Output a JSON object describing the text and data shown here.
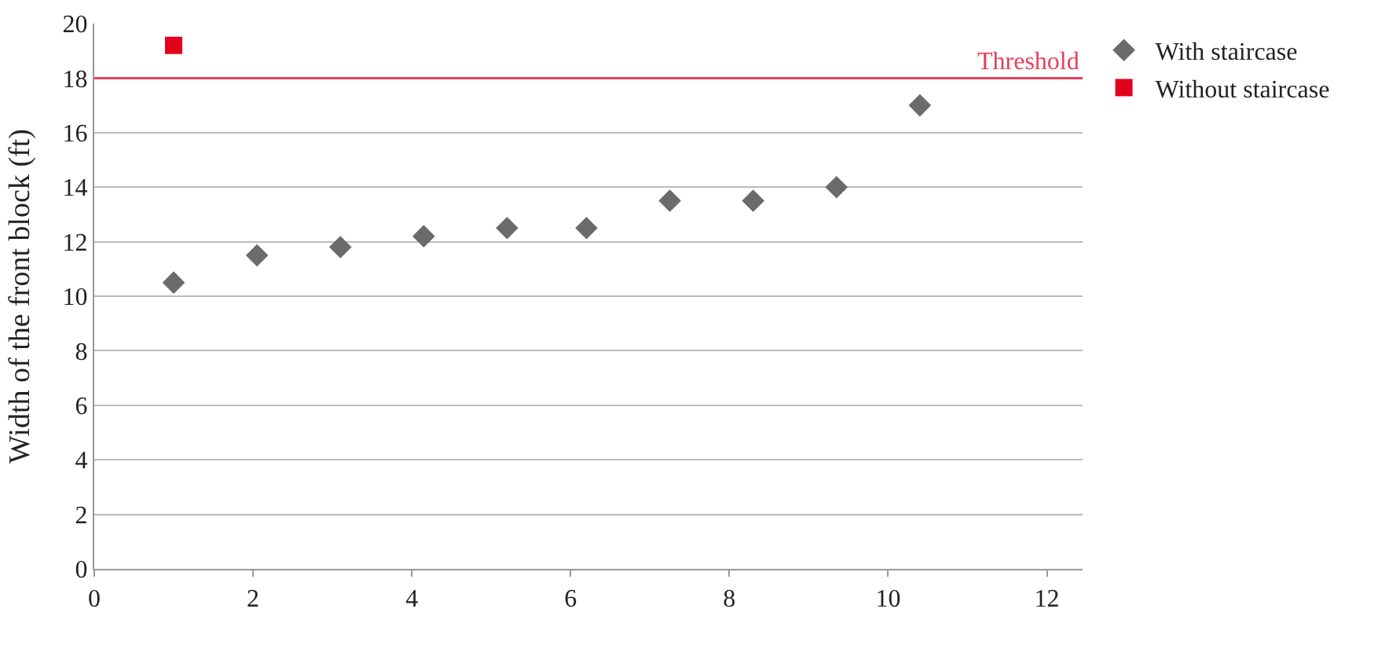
{
  "chart_data": {
    "type": "scatter",
    "ylabel": "Width of the front block (ft)",
    "xlim": [
      0,
      12.45
    ],
    "xticks": [
      0,
      2,
      4,
      6,
      8,
      10,
      12
    ],
    "ylim": [
      0,
      20
    ],
    "yticks": [
      0,
      2,
      4,
      6,
      8,
      10,
      12,
      14,
      16,
      18,
      20
    ],
    "grid": "y",
    "legend": "top right",
    "series": [
      {
        "name": "With staircase",
        "color": "#6b6b6b",
        "marker": "diamond",
        "x": [
          1,
          2.05,
          3.1,
          4.15,
          5.2,
          6.2,
          7.25,
          8.3,
          9.35,
          10.4
        ],
        "values": [
          10.5,
          11.5,
          11.8,
          12.2,
          12.5,
          12.5,
          13.5,
          13.5,
          14,
          17
        ]
      },
      {
        "name": "Without staircase",
        "color": "#e3001b",
        "marker": "square",
        "x": [
          1
        ],
        "values": [
          19.2
        ]
      }
    ],
    "ref_lines": [
      {
        "axis": "y",
        "value": 18,
        "label": "Threshold",
        "color": "#e8405a"
      }
    ]
  }
}
